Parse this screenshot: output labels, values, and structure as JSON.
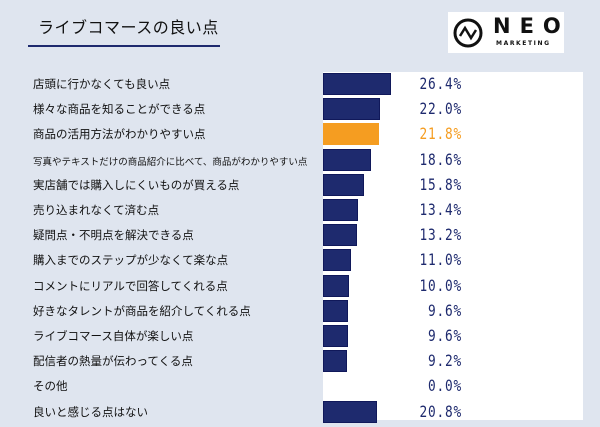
{
  "chart_data": {
    "type": "bar",
    "orientation": "horizontal",
    "title": "ライブコマースの良い点",
    "categories": [
      "店頭に行かなくても良い点",
      "様々な商品を知ることができる点",
      "商品の活用方法がわかりやすい点",
      "写真やテキストだけの商品紹介に比べて、商品がわかりやすい点",
      "実店舗では購入しにくいものが買える点",
      "売り込まれなくて済む点",
      "疑問点・不明点を解決できる点",
      "購入までのステップが少なくて楽な点",
      "コメントにリアルで回答してくれる点",
      "好きなタレントが商品を紹介してくれる点",
      "ライブコマース自体が楽しい点",
      "配信者の熱量が伝わってくる点",
      "その他",
      "良いと感じる点はない"
    ],
    "values": [
      26.4,
      22.0,
      21.8,
      18.6,
      15.8,
      13.4,
      13.2,
      11.0,
      10.0,
      9.6,
      9.6,
      9.2,
      0.0,
      20.8
    ],
    "value_labels": [
      "26.4%",
      "22.0%",
      "21.8%",
      "18.6%",
      "15.8%",
      "13.4%",
      "13.2%",
      "11.0%",
      "10.0%",
      "9.6%",
      "9.6%",
      "9.2%",
      "0.0%",
      "20.8%"
    ],
    "highlight_index": 2,
    "colors": {
      "bar": "#1e2a6e",
      "highlight": "#f59d21",
      "background": "#dfe5ef"
    },
    "grid": false
  },
  "logo": {
    "name": "NEO",
    "sub": "MARKETING"
  }
}
